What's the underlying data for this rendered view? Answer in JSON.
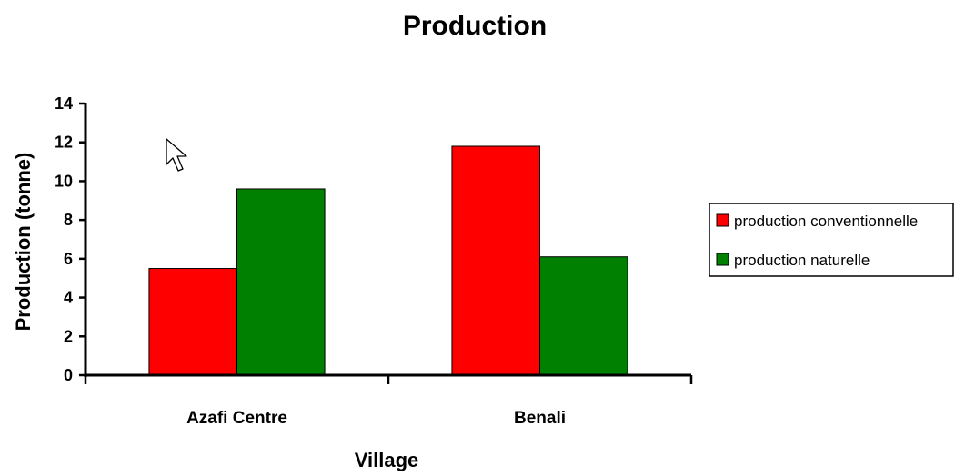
{
  "chart_data": {
    "type": "bar",
    "title": "Production",
    "xlabel": "Village",
    "ylabel": "Production (tonne)",
    "ylim": [
      0,
      14
    ],
    "yticks": [
      0,
      2,
      4,
      6,
      8,
      10,
      12,
      14
    ],
    "categories": [
      "Azafi Centre",
      "Benali"
    ],
    "series": [
      {
        "name": "production conventionnelle",
        "color": "#ff0000",
        "values": [
          5.5,
          11.8
        ]
      },
      {
        "name": "production naturelle",
        "color": "#008000",
        "values": [
          9.6,
          6.1
        ]
      }
    ],
    "grid": false,
    "legend_position": "right"
  },
  "cursor": {
    "icon": "mouse-pointer-icon"
  }
}
